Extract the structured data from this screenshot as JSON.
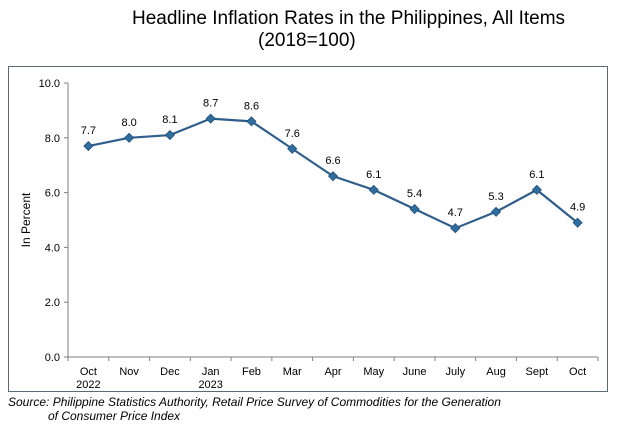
{
  "title_line1": "Headline Inflation Rates in the Philippines, All Items",
  "title_line2": "(2018=100)",
  "source_line1": "Source: Philippine Statistics Authority, Retail Price Survey of Commodities for the Generation",
  "source_line2": "of Consumer Price Index",
  "chart_data": {
    "type": "line",
    "ylabel": "In Percent",
    "ylim": [
      0,
      10
    ],
    "yticks": [
      "0.0",
      "2.0",
      "4.0",
      "6.0",
      "8.0",
      "10.0"
    ],
    "categories": [
      "Oct\n2022",
      "Nov",
      "Dec",
      "Jan\n2023",
      "Feb",
      "Mar",
      "Apr",
      "May",
      "June",
      "July",
      "Aug",
      "Sept",
      "Oct"
    ],
    "values": [
      7.7,
      8.0,
      8.1,
      8.7,
      8.6,
      7.6,
      6.6,
      6.1,
      5.4,
      4.7,
      5.3,
      6.1,
      4.9
    ],
    "data_labels": [
      "7.7",
      "8.0",
      "8.1",
      "8.7",
      "8.6",
      "7.6",
      "6.6",
      "6.1",
      "5.4",
      "4.7",
      "5.3",
      "6.1",
      "4.9"
    ],
    "grid": false,
    "legend": "none",
    "line_color": "#2f5f8a",
    "marker_color": "#2f6f9f"
  }
}
